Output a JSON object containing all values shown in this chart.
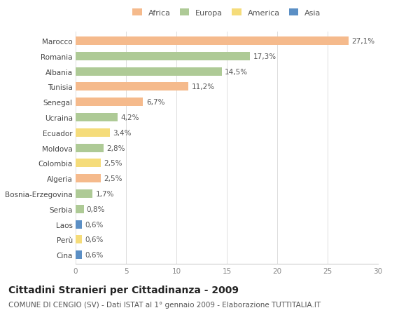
{
  "categories": [
    "Marocco",
    "Romania",
    "Albania",
    "Tunisia",
    "Senegal",
    "Ucraina",
    "Ecuador",
    "Moldova",
    "Colombia",
    "Algeria",
    "Bosnia-Erzegovina",
    "Serbia",
    "Laos",
    "Perù",
    "Cina"
  ],
  "values": [
    27.1,
    17.3,
    14.5,
    11.2,
    6.7,
    4.2,
    3.4,
    2.8,
    2.5,
    2.5,
    1.7,
    0.8,
    0.6,
    0.6,
    0.6
  ],
  "labels": [
    "27,1%",
    "17,3%",
    "14,5%",
    "11,2%",
    "6,7%",
    "4,2%",
    "3,4%",
    "2,8%",
    "2,5%",
    "2,5%",
    "1,7%",
    "0,8%",
    "0,6%",
    "0,6%",
    "0,6%"
  ],
  "colors": [
    "#F5BA8C",
    "#AECA96",
    "#AECA96",
    "#F5BA8C",
    "#F5BA8C",
    "#AECA96",
    "#F5DC7A",
    "#AECA96",
    "#F5DC7A",
    "#F5BA8C",
    "#AECA96",
    "#AECA96",
    "#5B8FC5",
    "#F5DC7A",
    "#5B8FC5"
  ],
  "legend_labels": [
    "Africa",
    "Europa",
    "America",
    "Asia"
  ],
  "legend_colors": [
    "#F5BA8C",
    "#AECA96",
    "#F5DC7A",
    "#5B8FC5"
  ],
  "xlim": [
    0,
    30
  ],
  "xticks": [
    0,
    5,
    10,
    15,
    20,
    25,
    30
  ],
  "title": "Cittadini Stranieri per Cittadinanza - 2009",
  "subtitle": "COMUNE DI CENGIO (SV) - Dati ISTAT al 1° gennaio 2009 - Elaborazione TUTTITALIA.IT",
  "bg_color": "#ffffff",
  "bar_height": 0.55,
  "title_fontsize": 10,
  "subtitle_fontsize": 7.5,
  "label_fontsize": 7.5,
  "tick_fontsize": 7.5,
  "legend_fontsize": 8
}
